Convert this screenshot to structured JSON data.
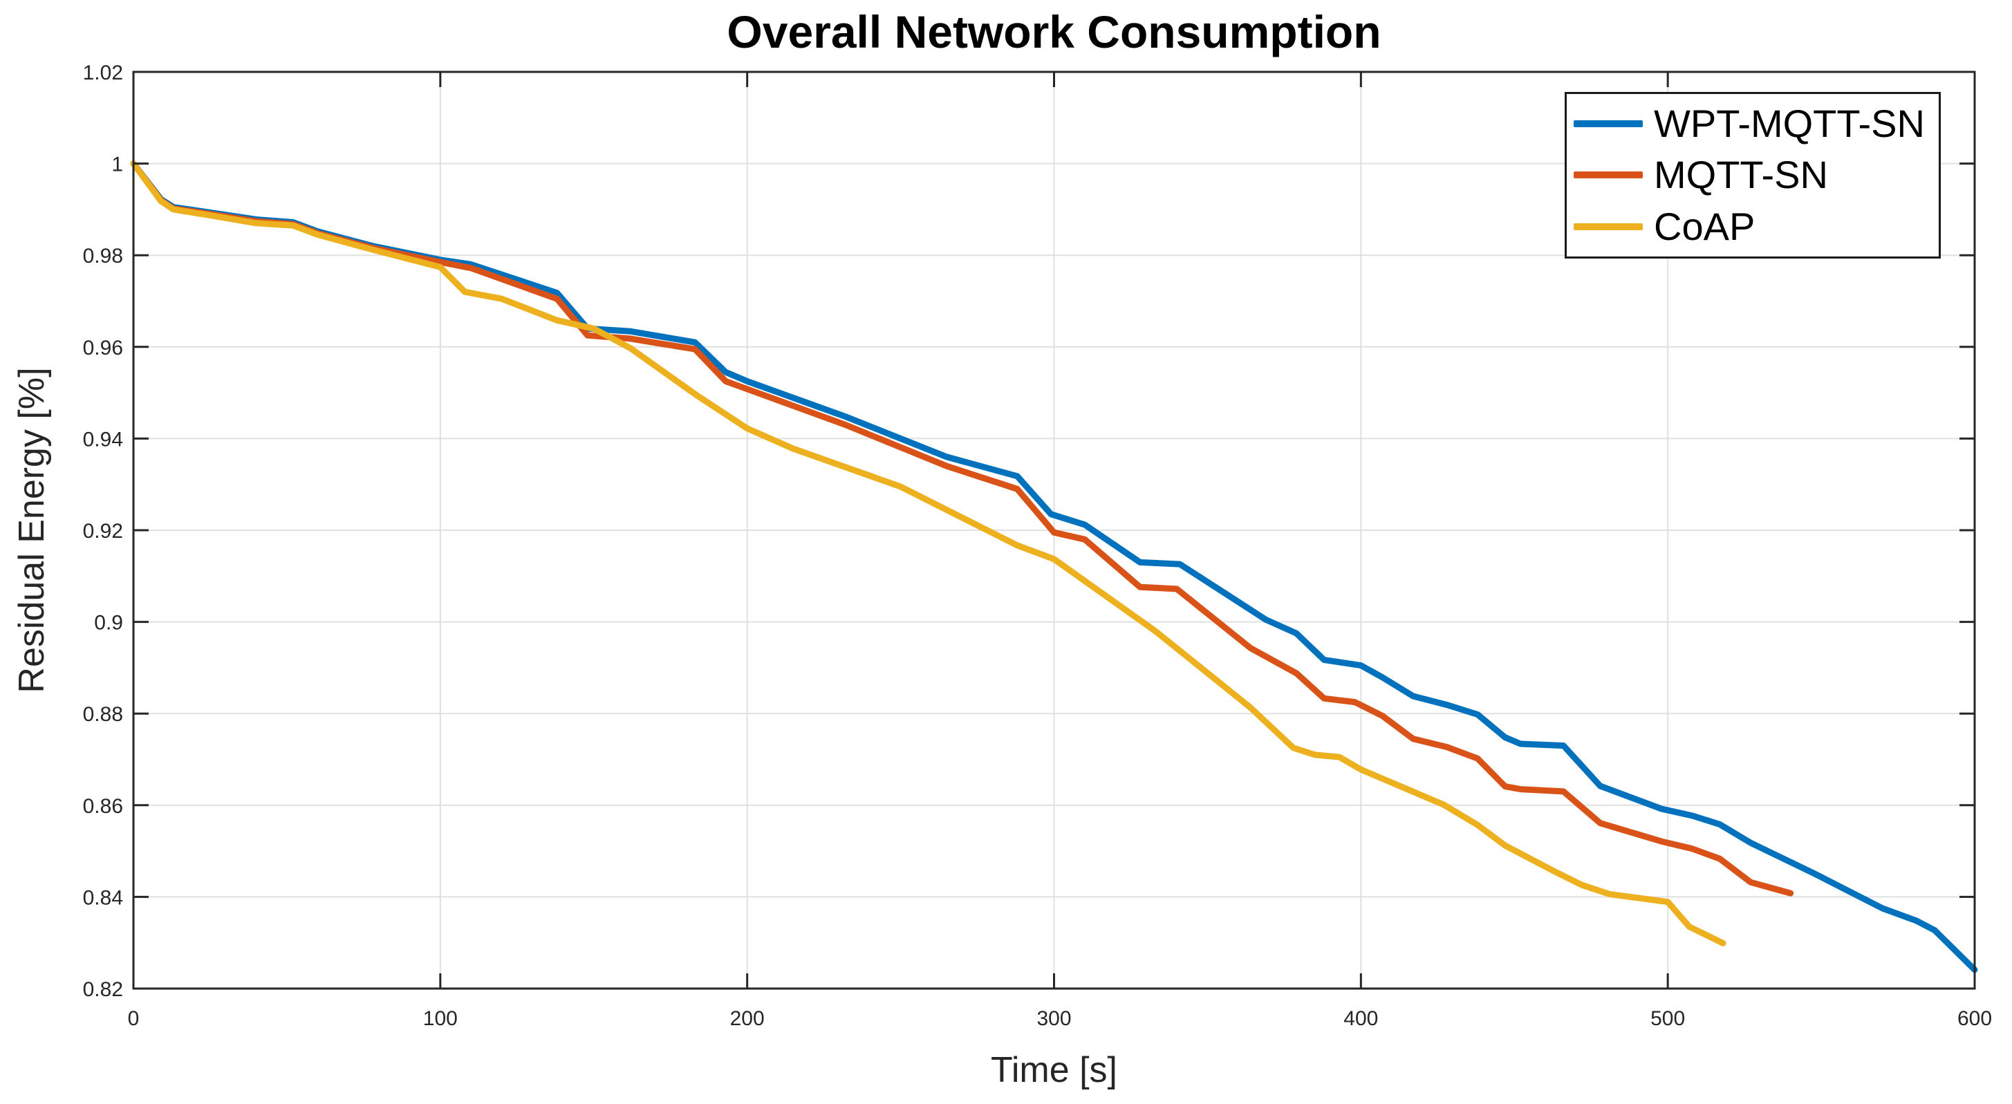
{
  "chart": {
    "title": "Overall Network Consumption",
    "xlabel": "Time [s]",
    "ylabel": "Residual Energy [%]"
  },
  "chart_data": {
    "type": "line",
    "title": "Overall Network Consumption",
    "xlabel": "Time [s]",
    "ylabel": "Residual Energy [%]",
    "xlim": [
      0,
      600
    ],
    "ylim": [
      0.82,
      1.02
    ],
    "x_ticks": [
      0,
      100,
      200,
      300,
      400,
      500,
      600
    ],
    "x_tick_labels": [
      "0",
      "100",
      "200",
      "300",
      "400",
      "500",
      "600"
    ],
    "y_ticks": [
      0.82,
      0.84,
      0.86,
      0.88,
      0.9,
      0.92,
      0.94,
      0.96,
      0.98,
      1.0,
      1.02
    ],
    "y_tick_labels": [
      "0.82",
      "0.84",
      "0.86",
      "0.88",
      "0.9",
      "0.92",
      "0.94",
      "0.96",
      "0.98",
      "1",
      "1.02"
    ],
    "grid": true,
    "grid_color": "#e0e0e0",
    "axis_color": "#262626",
    "legend_position": "top-right",
    "series": [
      {
        "name": "WPT-MQTT-SN",
        "color": "#0072BD",
        "points": [
          [
            0,
            1.0
          ],
          [
            9,
            0.9922
          ],
          [
            13,
            0.9905
          ],
          [
            25,
            0.9893
          ],
          [
            40,
            0.9878
          ],
          [
            52,
            0.9872
          ],
          [
            60,
            0.9852
          ],
          [
            78,
            0.982
          ],
          [
            100,
            0.979
          ],
          [
            110,
            0.978
          ],
          [
            138,
            0.9718
          ],
          [
            148,
            0.964
          ],
          [
            162,
            0.9634
          ],
          [
            183,
            0.961
          ],
          [
            193,
            0.9545
          ],
          [
            200,
            0.9525
          ],
          [
            232,
            0.9448
          ],
          [
            265,
            0.936
          ],
          [
            288,
            0.9318
          ],
          [
            299,
            0.9235
          ],
          [
            310,
            0.9212
          ],
          [
            328,
            0.913
          ],
          [
            341,
            0.9126
          ],
          [
            369,
            0.9005
          ],
          [
            379,
            0.8975
          ],
          [
            388,
            0.8917
          ],
          [
            400,
            0.8905
          ],
          [
            407,
            0.8879
          ],
          [
            417,
            0.8838
          ],
          [
            428,
            0.8819
          ],
          [
            438,
            0.8798
          ],
          [
            447,
            0.8748
          ],
          [
            452,
            0.8734
          ],
          [
            466,
            0.873
          ],
          [
            478,
            0.8642
          ],
          [
            498,
            0.8592
          ],
          [
            508,
            0.8577
          ],
          [
            517,
            0.8558
          ],
          [
            527,
            0.8518
          ],
          [
            548,
            0.845
          ],
          [
            570,
            0.8375
          ],
          [
            581,
            0.8348
          ],
          [
            587,
            0.8327
          ],
          [
            600,
            0.8241
          ]
        ]
      },
      {
        "name": "MQTT-SN",
        "color": "#D95319",
        "points": [
          [
            0,
            1.0
          ],
          [
            9,
            0.992
          ],
          [
            13,
            0.9902
          ],
          [
            25,
            0.989
          ],
          [
            40,
            0.9874
          ],
          [
            52,
            0.9868
          ],
          [
            60,
            0.9848
          ],
          [
            78,
            0.9816
          ],
          [
            100,
            0.9785
          ],
          [
            110,
            0.9772
          ],
          [
            138,
            0.9705
          ],
          [
            148,
            0.9625
          ],
          [
            162,
            0.9618
          ],
          [
            183,
            0.9595
          ],
          [
            193,
            0.9525
          ],
          [
            200,
            0.9508
          ],
          [
            232,
            0.943
          ],
          [
            265,
            0.934
          ],
          [
            288,
            0.929
          ],
          [
            300,
            0.9195
          ],
          [
            310,
            0.918
          ],
          [
            328,
            0.9076
          ],
          [
            340,
            0.9072
          ],
          [
            364,
            0.8943
          ],
          [
            379,
            0.8888
          ],
          [
            388,
            0.8833
          ],
          [
            398,
            0.8825
          ],
          [
            407,
            0.8795
          ],
          [
            417,
            0.8745
          ],
          [
            428,
            0.8727
          ],
          [
            438,
            0.8702
          ],
          [
            447,
            0.8641
          ],
          [
            452,
            0.8635
          ],
          [
            466,
            0.863
          ],
          [
            478,
            0.8561
          ],
          [
            498,
            0.8521
          ],
          [
            508,
            0.8505
          ],
          [
            517,
            0.8483
          ],
          [
            527,
            0.8432
          ],
          [
            540,
            0.8408
          ]
        ]
      },
      {
        "name": "CoAP",
        "color": "#EDB120",
        "points": [
          [
            0,
            1.0
          ],
          [
            9,
            0.9918
          ],
          [
            13,
            0.99
          ],
          [
            25,
            0.9887
          ],
          [
            40,
            0.987
          ],
          [
            52,
            0.9865
          ],
          [
            60,
            0.9845
          ],
          [
            78,
            0.9812
          ],
          [
            100,
            0.9774
          ],
          [
            108,
            0.972
          ],
          [
            120,
            0.9705
          ],
          [
            138,
            0.9658
          ],
          [
            150,
            0.964
          ],
          [
            162,
            0.9597
          ],
          [
            183,
            0.9497
          ],
          [
            200,
            0.9422
          ],
          [
            215,
            0.9378
          ],
          [
            250,
            0.9295
          ],
          [
            288,
            0.9167
          ],
          [
            300,
            0.9137
          ],
          [
            333,
            0.898
          ],
          [
            364,
            0.8813
          ],
          [
            378,
            0.8725
          ],
          [
            385,
            0.871
          ],
          [
            393,
            0.8705
          ],
          [
            400,
            0.8678
          ],
          [
            427,
            0.8601
          ],
          [
            438,
            0.8557
          ],
          [
            447,
            0.8512
          ],
          [
            463,
            0.8456
          ],
          [
            472,
            0.8426
          ],
          [
            481,
            0.8406
          ],
          [
            500,
            0.8389
          ],
          [
            507,
            0.8335
          ],
          [
            518,
            0.8299
          ]
        ]
      }
    ]
  }
}
